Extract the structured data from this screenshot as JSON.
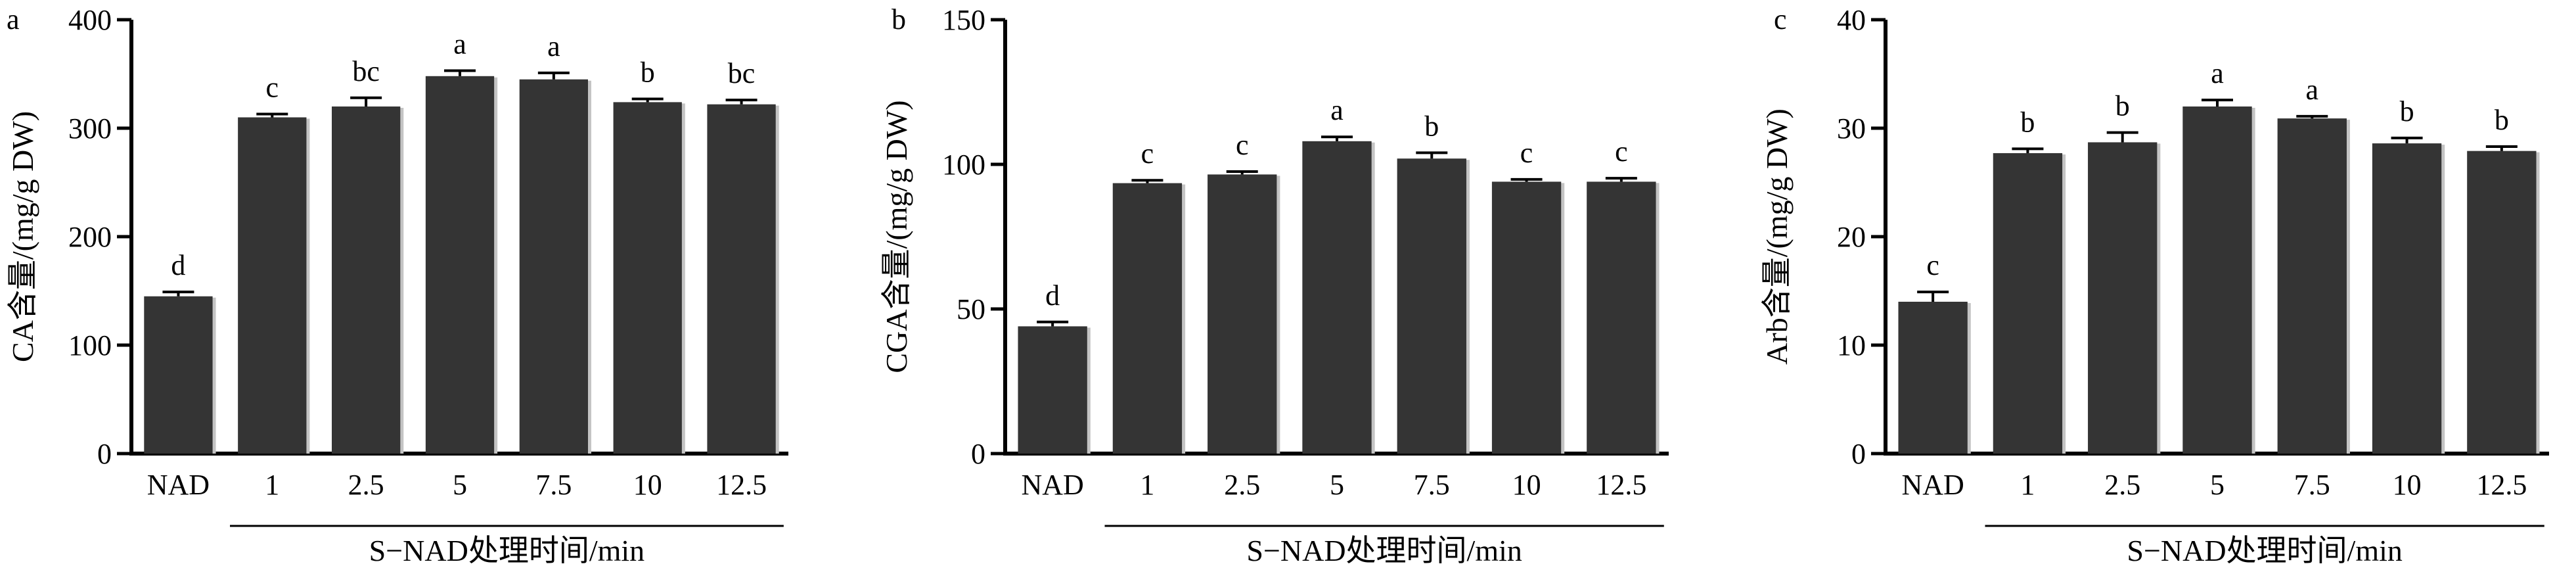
{
  "colors": {
    "bar_fill": "#343434",
    "bar_shadow": "#c4c4c4",
    "axis": "#000000"
  },
  "chart_data": [
    {
      "type": "bar",
      "panel": "a",
      "categories": [
        "NAD",
        "1",
        "2.5",
        "5",
        "7.5",
        "10",
        "12.5"
      ],
      "values": [
        145,
        310,
        320,
        348,
        345,
        324,
        322
      ],
      "errors": [
        4,
        3,
        8,
        5,
        6,
        3,
        4
      ],
      "labels": [
        "d",
        "c",
        "bc",
        "a",
        "a",
        "b",
        "bc"
      ],
      "ylabel": "CA含量/(mg/g DW)",
      "xgroup_label": "S−NAD处理时间/min",
      "ylim": [
        0,
        400
      ],
      "yticks": [
        0,
        100,
        200,
        300,
        400
      ],
      "grid": false
    },
    {
      "type": "bar",
      "panel": "b",
      "categories": [
        "NAD",
        "1",
        "2.5",
        "5",
        "7.5",
        "10",
        "12.5"
      ],
      "values": [
        44,
        93.5,
        96.5,
        108,
        102,
        94,
        94
      ],
      "errors": [
        1.5,
        1,
        1,
        1.5,
        2,
        0.8,
        1.2
      ],
      "labels": [
        "d",
        "c",
        "c",
        "a",
        "b",
        "c",
        "c"
      ],
      "ylabel": "CGA含量/(mg/g DW)",
      "xgroup_label": "S−NAD处理时间/min",
      "ylim": [
        0,
        150
      ],
      "yticks": [
        0,
        50,
        100,
        150
      ],
      "grid": false
    },
    {
      "type": "bar",
      "panel": "c",
      "categories": [
        "NAD",
        "1",
        "2.5",
        "5",
        "7.5",
        "10",
        "12.5"
      ],
      "values": [
        14,
        27.7,
        28.7,
        32,
        30.9,
        28.6,
        27.9
      ],
      "errors": [
        0.9,
        0.4,
        0.9,
        0.6,
        0.2,
        0.5,
        0.4
      ],
      "labels": [
        "c",
        "b",
        "b",
        "a",
        "a",
        "b",
        "b"
      ],
      "ylabel": "Arb含量/(mg/g DW)",
      "xgroup_label": "S−NAD处理时间/min",
      "ylim": [
        0,
        40
      ],
      "yticks": [
        0,
        10,
        20,
        30,
        40
      ],
      "grid": false
    }
  ]
}
